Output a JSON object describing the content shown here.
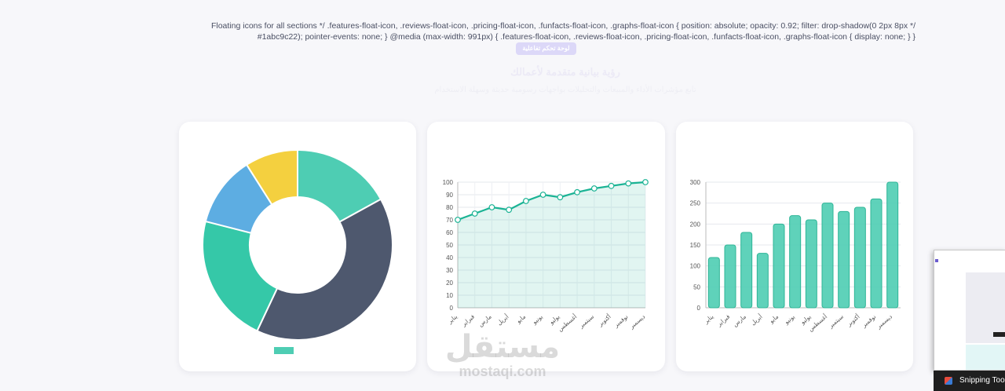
{
  "page": {
    "css_leak_text": "Floating icons for all sections */ .features-float-icon, .reviews-float-icon, .pricing-float-icon, .funfacts-float-icon, .graphs-float-icon { position: absolute; opacity: 0.92; filter: drop-shadow(0 2px 8px */ #1abc9c22); pointer-events: none; } @media (max-width: 991px) { .features-float-icon, .reviews-float-icon, .pricing-float-icon, .funfacts-float-icon, .graphs-float-icon { display: none; } }",
    "pill_label": "لوحة تحكم تفاعلية",
    "section_title": "رؤية بيانية متقدمة لأعمالك",
    "section_subtitle": "تابع مؤشرات الأداء والمبيعات والتحليلات بواجهات رسومية حديثة وسهلة الاستخدام"
  },
  "colors": {
    "teal": "#4ecdb3",
    "line_teal": "#1ab394",
    "dark_slate": "#4e586e",
    "green": "#35c8a8",
    "blue": "#5dade2",
    "yellow": "#f4d03f"
  },
  "watermark": {
    "arabic": "مستقل",
    "latin": "mostaqi.com"
  },
  "taskbar": {
    "label": "Snipping Tool"
  },
  "chart_data": [
    {
      "type": "pie",
      "variant": "doughnut",
      "values": [
        17,
        40,
        22,
        12,
        9
      ],
      "colors": [
        "#4ecdb3",
        "#4e586e",
        "#35c8a8",
        "#5dade2",
        "#f4d03f"
      ],
      "legend_placement": "bottom"
    },
    {
      "type": "area",
      "categories": [
        "يناير",
        "فبراير",
        "مارس",
        "أبريل",
        "مايو",
        "يونيو",
        "يوليو",
        "أغسطس",
        "سبتمبر",
        "أكتوبر",
        "نوفمبر",
        "ديسمبر"
      ],
      "values": [
        70,
        75,
        80,
        78,
        85,
        90,
        88,
        92,
        95,
        97,
        99,
        100
      ],
      "ylim": [
        0,
        100
      ],
      "yticks": [
        0,
        10,
        20,
        30,
        40,
        50,
        60,
        70,
        80,
        90,
        100
      ],
      "grid": true
    },
    {
      "type": "bar",
      "categories": [
        "يناير",
        "فبراير",
        "مارس",
        "أبريل",
        "مايو",
        "يونيو",
        "يوليو",
        "أغسطس",
        "سبتمبر",
        "أكتوبر",
        "نوفمبر",
        "ديسمبر"
      ],
      "values": [
        120,
        150,
        180,
        130,
        200,
        220,
        210,
        250,
        230,
        240,
        260,
        300
      ],
      "ylim": [
        0,
        300
      ],
      "yticks": [
        0,
        50,
        100,
        150,
        200,
        250,
        300
      ],
      "grid": true
    }
  ]
}
